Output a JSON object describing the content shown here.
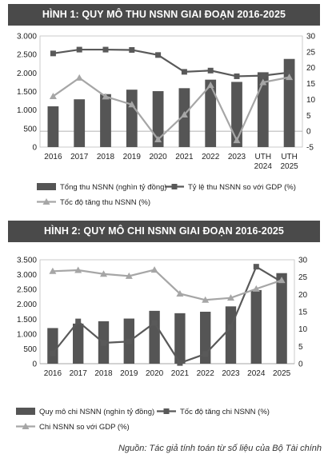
{
  "titles": {
    "chart1": "HÌNH 1: QUY MÔ THU NSNN GIAI ĐOẠN 2016-2025",
    "chart2": "HÌNH 2: QUY MÔ CHI NSNN GIAI ĐOẠN 2016-2025"
  },
  "source": "Nguồn: Tác giả tính toán từ số liệu của Bộ Tài chính",
  "colors": {
    "bar": "#555555",
    "line_dark": "#595959",
    "line_light": "#a6a6a6",
    "title_bg": "#4a4a4a"
  },
  "chart_data": [
    {
      "type": "bar",
      "categories": [
        [
          "2016"
        ],
        [
          "2017"
        ],
        [
          "2018"
        ],
        [
          "2019"
        ],
        [
          "2020"
        ],
        [
          "2021"
        ],
        [
          "2022"
        ],
        [
          "2023"
        ],
        [
          "UTH",
          "2024"
        ],
        [
          "UTH",
          "2025"
        ]
      ],
      "y_left": {
        "lim": [
          0,
          3000
        ],
        "ticks": [
          "0",
          "500",
          "1.000",
          "1.500",
          "2.000",
          "2.500",
          "3.000"
        ],
        "tick_values": [
          0,
          500,
          1000,
          1500,
          2000,
          2500,
          3000
        ]
      },
      "y_right": {
        "lim": [
          -5,
          30
        ],
        "ticks": [
          "-5",
          "0",
          "5",
          "10",
          "15",
          "20",
          "25",
          "30"
        ],
        "tick_values": [
          -5,
          0,
          5,
          10,
          15,
          20,
          25,
          30
        ]
      },
      "series": [
        {
          "name": "Tổng thu NSNN (nghìn tỷ đồng)",
          "kind": "bar",
          "axis": "left",
          "values": [
            1100,
            1290,
            1430,
            1550,
            1510,
            1590,
            1820,
            1760,
            2020,
            2380
          ]
        },
        {
          "name": "Tỷ lệ thu NSNN so với GDP (%)",
          "kind": "line",
          "axis": "right",
          "marker": "square",
          "values": [
            24.5,
            25.7,
            25.7,
            25.6,
            24.0,
            18.7,
            19.1,
            17.3,
            17.5,
            18.5
          ]
        },
        {
          "name": "Tốc độ tăng thu NSNN (%)",
          "kind": "line",
          "axis": "right",
          "marker": "triangle",
          "values": [
            11.0,
            16.8,
            10.9,
            8.4,
            -2.6,
            5.2,
            14.5,
            -2.9,
            15.4,
            17.0
          ]
        }
      ],
      "legend": [
        {
          "label": "Tổng thu NSNN (nghìn tỷ đồng)",
          "marker": "box"
        },
        {
          "label": "Tỷ lệ thu NSNN so với GDP (%)",
          "marker": "line-square"
        },
        {
          "label": "Tốc độ tăng thu NSNN (%)",
          "marker": "line-triangle"
        }
      ]
    },
    {
      "type": "bar",
      "categories": [
        [
          "2016"
        ],
        [
          "2017"
        ],
        [
          "2018"
        ],
        [
          "2019"
        ],
        [
          "2020"
        ],
        [
          "2021"
        ],
        [
          "2022"
        ],
        [
          "2023"
        ],
        [
          "2024"
        ],
        [
          "2025"
        ]
      ],
      "y_left": {
        "lim": [
          0,
          3500
        ],
        "ticks": [
          "0",
          "500",
          "1.000",
          "1.500",
          "2.000",
          "2.500",
          "3.000",
          "3.500"
        ],
        "tick_values": [
          0,
          500,
          1000,
          1500,
          2000,
          2500,
          3000,
          3500
        ]
      },
      "y_right": {
        "lim": [
          0,
          30
        ],
        "ticks": [
          "0",
          "5",
          "10",
          "15",
          "20",
          "25",
          "30"
        ],
        "tick_values": [
          0,
          5,
          10,
          15,
          20,
          25,
          30
        ]
      },
      "series": [
        {
          "name": "Quy mô chi NSNN (nghìn tỷ đồng)",
          "kind": "bar",
          "axis": "left",
          "values": [
            1200,
            1350,
            1430,
            1520,
            1780,
            1700,
            1750,
            1930,
            2480,
            3050
          ]
        },
        {
          "name": "Tốc độ tăng chi NSNN (%)",
          "kind": "line",
          "axis": "right",
          "marker": "square",
          "values": [
            3.0,
            12.2,
            6.0,
            6.4,
            11.8,
            0.2,
            2.8,
            10.5,
            28.0,
            23.6
          ]
        },
        {
          "name": "Chi NSNN so với GDP (%)",
          "kind": "line",
          "axis": "right",
          "marker": "triangle",
          "values": [
            26.7,
            27.0,
            25.9,
            25.3,
            27.1,
            20.2,
            18.4,
            19.0,
            21.6,
            24.1
          ]
        }
      ],
      "legend": [
        {
          "label": "Quy mô chi NSNN (nghìn tỷ đồng)",
          "marker": "box"
        },
        {
          "label": "Tốc độ tăng chi NSNN (%)",
          "marker": "line-square"
        },
        {
          "label": "Chi NSNN so với GDP (%)",
          "marker": "line-triangle"
        }
      ]
    }
  ]
}
